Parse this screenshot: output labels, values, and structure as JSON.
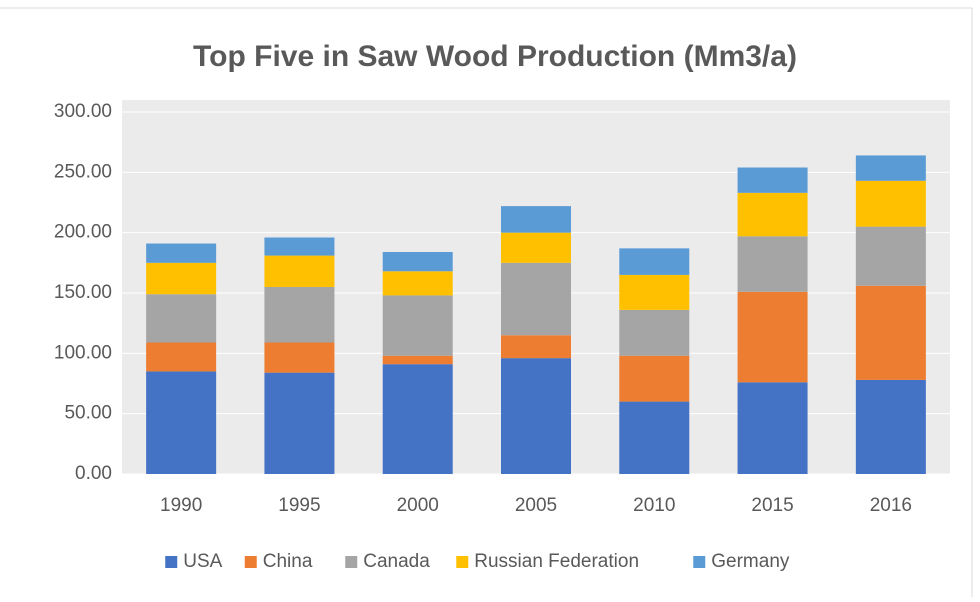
{
  "chart_data": {
    "type": "stacked_bar",
    "title": "Top Five in Saw Wood Production (Mm3/a)",
    "categories": [
      "1990",
      "1995",
      "2000",
      "2005",
      "2010",
      "2015",
      "2016"
    ],
    "series": [
      {
        "name": "USA",
        "color": "#4472c4",
        "values": [
          85,
          84,
          91,
          96,
          60,
          76,
          78
        ]
      },
      {
        "name": "China",
        "color": "#ed7d31",
        "values": [
          24,
          25,
          7,
          19,
          38,
          75,
          78
        ]
      },
      {
        "name": "Canada",
        "color": "#a5a5a5",
        "values": [
          40,
          46,
          50,
          60,
          38,
          46,
          49
        ]
      },
      {
        "name": "Russian Federation",
        "color": "#ffc000",
        "values": [
          26,
          26,
          20,
          25,
          29,
          36,
          38
        ]
      },
      {
        "name": "Germany",
        "color": "#5b9bd5",
        "values": [
          16,
          15,
          16,
          22,
          22,
          21,
          21
        ]
      }
    ],
    "ylim": [
      0,
      300
    ],
    "yticks": [
      {
        "value": 0,
        "label": "0.00"
      },
      {
        "value": 50,
        "label": "50.00"
      },
      {
        "value": 100,
        "label": "100.00"
      },
      {
        "value": 150,
        "label": "150.00"
      },
      {
        "value": 200,
        "label": "200.00"
      },
      {
        "value": 250,
        "label": "250.00"
      },
      {
        "value": 300,
        "label": "300.00"
      }
    ],
    "grid": true,
    "legend": "bottom"
  }
}
